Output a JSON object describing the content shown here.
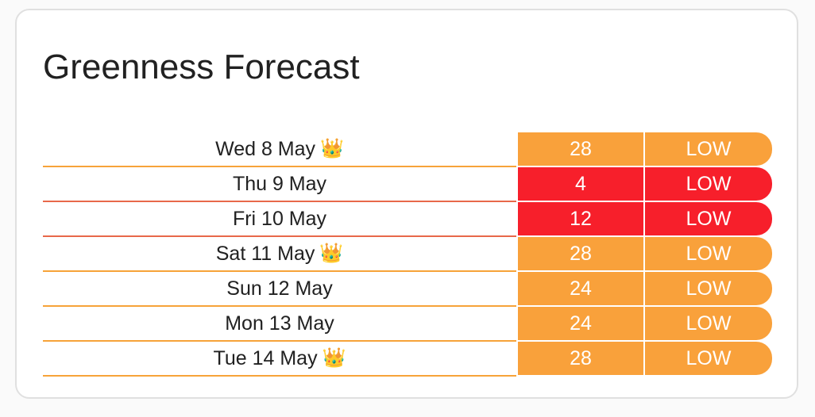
{
  "card": {
    "title": "Greenness Forecast"
  },
  "colors": {
    "low_orange": "#f9a13b",
    "low_red": "#f71f2b",
    "border_orange": "#f7a339",
    "border_red": "#e8684a"
  },
  "forecast": [
    {
      "date": "Wed 8 May",
      "crown": "👑",
      "value": "28",
      "level": "LOW",
      "color": "orange"
    },
    {
      "date": "Thu 9 May",
      "crown": "",
      "value": "4",
      "level": "LOW",
      "color": "red"
    },
    {
      "date": "Fri 10 May",
      "crown": "",
      "value": "12",
      "level": "LOW",
      "color": "red"
    },
    {
      "date": "Sat 11 May",
      "crown": "👑",
      "value": "28",
      "level": "LOW",
      "color": "orange"
    },
    {
      "date": "Sun 12 May",
      "crown": "",
      "value": "24",
      "level": "LOW",
      "color": "orange"
    },
    {
      "date": "Mon 13 May",
      "crown": "",
      "value": "24",
      "level": "LOW",
      "color": "orange"
    },
    {
      "date": "Tue 14 May",
      "crown": "👑",
      "value": "28",
      "level": "LOW",
      "color": "orange"
    }
  ]
}
